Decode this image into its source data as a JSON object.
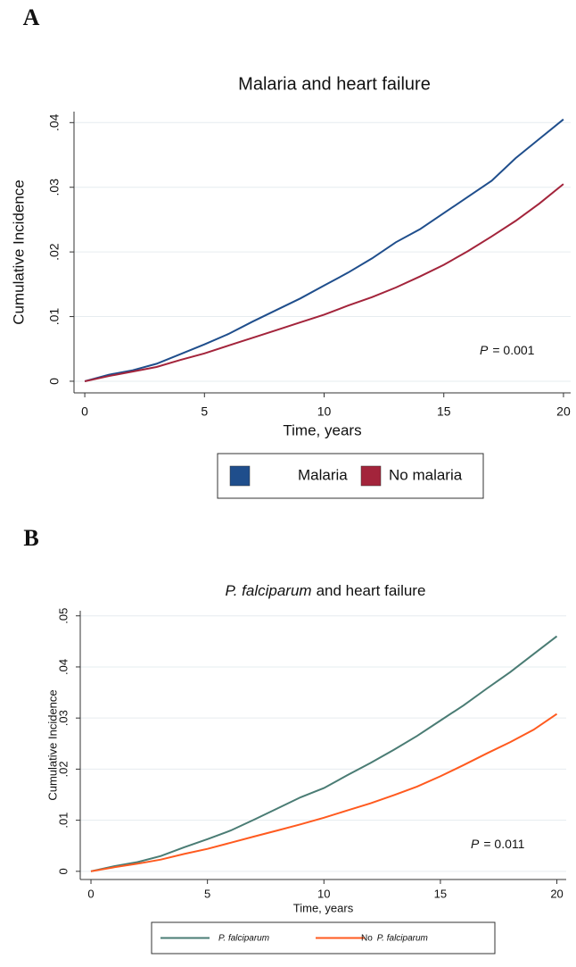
{
  "chart_data": [
    {
      "type": "line",
      "panel": "A",
      "title": "Malaria and heart failure",
      "x_label": "Time, years",
      "y_label": "Cumulative Incidence",
      "annotation": [
        {
          "text": "P",
          "italic": true
        },
        {
          "text": "= 0.001"
        }
      ],
      "x": [
        0,
        1,
        2,
        3,
        4,
        5,
        6,
        7,
        8,
        9,
        10,
        11,
        12,
        13,
        14,
        15,
        16,
        17,
        18,
        19,
        20
      ],
      "series": [
        {
          "name": "Malaria",
          "color": "#1f4e8c",
          "values": [
            0,
            0.001,
            0.0017,
            0.0027,
            0.0042,
            0.0057,
            0.0073,
            0.0092,
            0.011,
            0.0128,
            0.0148,
            0.0168,
            0.019,
            0.0215,
            0.0235,
            0.026,
            0.0285,
            0.031,
            0.0345,
            0.0375,
            0.0405
          ]
        },
        {
          "name": "No malaria",
          "color": "#a3243b",
          "values": [
            0,
            0.0008,
            0.0015,
            0.0022,
            0.0033,
            0.0043,
            0.0055,
            0.0067,
            0.0079,
            0.0091,
            0.0103,
            0.0117,
            0.013,
            0.0145,
            0.0162,
            0.018,
            0.0201,
            0.0224,
            0.0248,
            0.0275,
            0.0305
          ]
        }
      ],
      "xlim": [
        -0.45,
        20.3
      ],
      "xticks": [
        0,
        5,
        10,
        15,
        20
      ],
      "ylim": [
        -0.0018,
        0.0417
      ],
      "yticks": [
        0,
        {
          "value": 0.01,
          "label": ".01"
        },
        {
          "value": 0.02,
          "label": ".02"
        },
        {
          "value": 0.03,
          "label": ".03"
        },
        {
          "value": 0.04,
          "label": ".04"
        }
      ],
      "grid": true,
      "legend": "bottom",
      "legend_marker": "square"
    },
    {
      "type": "line",
      "panel": "B",
      "title": [
        {
          "text": "P. falciparum",
          "italic": true
        },
        {
          "text": "and heart failure"
        }
      ],
      "x_label": "Time, years",
      "y_label": "Cumulative Incidence",
      "annotation": [
        {
          "text": "P",
          "italic": true
        },
        {
          "text": "= 0.011"
        }
      ],
      "x": [
        0,
        1,
        2,
        3,
        4,
        5,
        6,
        7,
        8,
        9,
        10,
        11,
        12,
        13,
        14,
        15,
        16,
        17,
        18,
        19,
        20
      ],
      "series": [
        {
          "name": [
            {
              "text": "P. falciparum",
              "italic": true
            }
          ],
          "color": "#4a7c74",
          "values": [
            0,
            0.001,
            0.0018,
            0.003,
            0.0047,
            0.0063,
            0.008,
            0.0101,
            0.0123,
            0.0145,
            0.0163,
            0.0188,
            0.0212,
            0.0238,
            0.0265,
            0.0295,
            0.0325,
            0.0358,
            0.039,
            0.0425,
            0.046
          ]
        },
        {
          "name": [
            {
              "text": "No"
            },
            {
              "text": "P. falciparum",
              "italic": true
            }
          ],
          "color": "#ff5a1f",
          "values": [
            0,
            0.0008,
            0.0015,
            0.0023,
            0.0034,
            0.0044,
            0.0056,
            0.0068,
            0.008,
            0.0092,
            0.0105,
            0.0119,
            0.0133,
            0.0149,
            0.0166,
            0.0186,
            0.0208,
            0.0231,
            0.0253,
            0.0277,
            0.0308
          ]
        }
      ],
      "xlim": [
        -0.46,
        20.4
      ],
      "xticks": [
        0,
        5,
        10,
        15,
        20
      ],
      "ylim": [
        -0.0016,
        0.051
      ],
      "yticks": [
        0,
        {
          "value": 0.01,
          "label": ".01"
        },
        {
          "value": 0.02,
          "label": ".02"
        },
        {
          "value": 0.03,
          "label": ".03"
        },
        {
          "value": 0.04,
          "label": ".04"
        },
        {
          "value": 0.05,
          "label": ".05"
        }
      ],
      "grid": true,
      "legend": "bottom",
      "legend_marker": "line"
    }
  ]
}
